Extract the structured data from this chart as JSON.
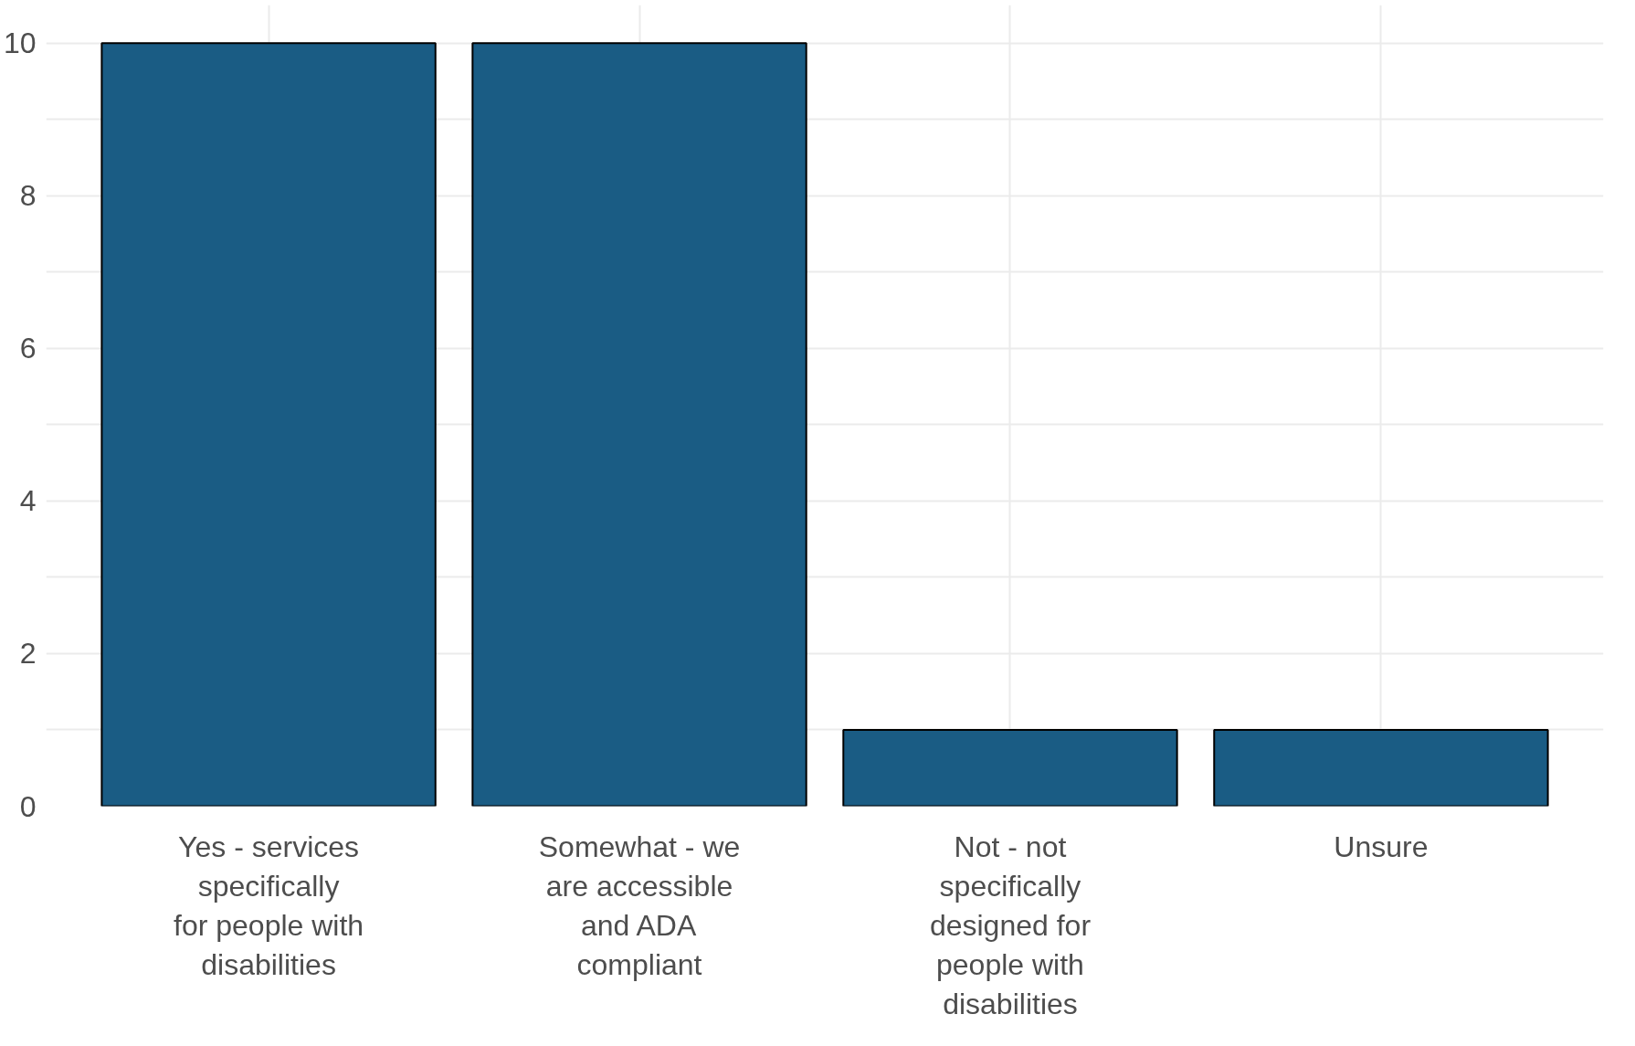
{
  "chart_data": {
    "type": "bar",
    "categories": [
      "Yes - services specifically for people with disabilities",
      "Somewhat - we are accessible and ADA compliant",
      "Not - not specifically designed for people with disabilities",
      "Unsure"
    ],
    "values": [
      10,
      10,
      1,
      1
    ],
    "color": "#1a5c84",
    "ylim": [
      0,
      10.5
    ],
    "yticks": [
      0,
      2,
      4,
      6,
      8,
      10
    ],
    "grid": true
  }
}
